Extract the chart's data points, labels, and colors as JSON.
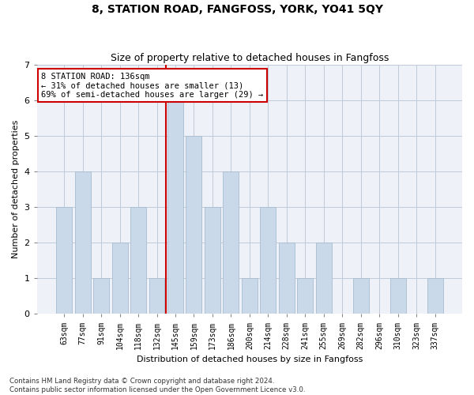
{
  "title": "8, STATION ROAD, FANGFOSS, YORK, YO41 5QY",
  "subtitle": "Size of property relative to detached houses in Fangfoss",
  "xlabel": "Distribution of detached houses by size in Fangfoss",
  "ylabel": "Number of detached properties",
  "categories": [
    "63sqm",
    "77sqm",
    "91sqm",
    "104sqm",
    "118sqm",
    "132sqm",
    "145sqm",
    "159sqm",
    "173sqm",
    "186sqm",
    "200sqm",
    "214sqm",
    "228sqm",
    "241sqm",
    "255sqm",
    "269sqm",
    "282sqm",
    "296sqm",
    "310sqm",
    "323sqm",
    "337sqm"
  ],
  "values": [
    3,
    4,
    1,
    2,
    3,
    1,
    6,
    5,
    3,
    4,
    1,
    3,
    2,
    1,
    2,
    0,
    1,
    0,
    1,
    0,
    1
  ],
  "bar_color": "#c9d9ea",
  "bar_edge_color": "#a8bdd0",
  "highlight_index": 6,
  "vline_color": "#cc0000",
  "annotation_title": "8 STATION ROAD: 136sqm",
  "annotation_line1": "← 31% of detached houses are smaller (13)",
  "annotation_line2": "69% of semi-detached houses are larger (29) →",
  "annotation_box_color": "#ffffff",
  "annotation_box_edge": "#cc0000",
  "ylim": [
    0,
    7
  ],
  "yticks": [
    0,
    1,
    2,
    3,
    4,
    5,
    6,
    7
  ],
  "footer": "Contains HM Land Registry data © Crown copyright and database right 2024.\nContains public sector information licensed under the Open Government Licence v3.0.",
  "bg_color": "#eef2f8",
  "grid_color": "#c0cad8",
  "title_fontsize": 10,
  "subtitle_fontsize": 9,
  "xlabel_fontsize": 8,
  "ylabel_fontsize": 8
}
